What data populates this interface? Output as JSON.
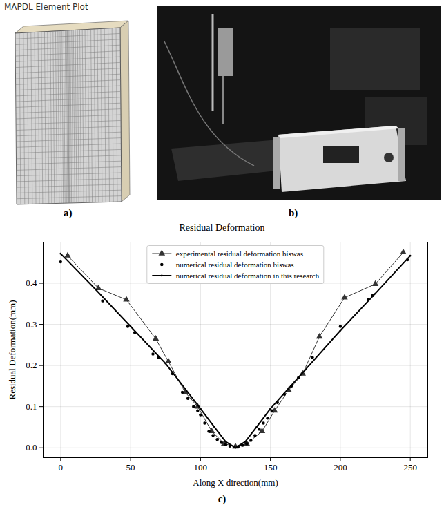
{
  "figures": [
    {
      "label": "a)",
      "title": "MAPDL Element Plot"
    },
    {
      "label": "b)"
    }
  ],
  "chart_data": {
    "type": "line",
    "title": "Residual Deformation",
    "panel_label": "c)",
    "x_label": "Along X direction(mm)",
    "y_label": "Residual Deformation(mm)",
    "xlim": [
      -12.5,
      262.5
    ],
    "xticks": [
      0,
      50,
      100,
      150,
      200,
      250
    ],
    "ylim": [
      -0.024,
      0.5
    ],
    "yticks": [
      {
        "value": 0,
        "label": "0.0"
      },
      {
        "value": 0.1,
        "label": "0.1"
      },
      {
        "value": 0.2,
        "label": "0.2"
      },
      {
        "value": 0.3,
        "label": "0.3"
      },
      {
        "value": 0.4,
        "label": "0.4"
      }
    ],
    "grid": true,
    "legend": "upper center",
    "series": [
      {
        "name": "experimental residual deformation biswas",
        "color": "#333333",
        "marker": "triangle",
        "line_style": "solid",
        "x": [
          5,
          27,
          47,
          68,
          77,
          89,
          98,
          108,
          117,
          125,
          133,
          144,
          153,
          163,
          173,
          185,
          203,
          225,
          245
        ],
        "values": [
          0.467,
          0.388,
          0.36,
          0.265,
          0.21,
          0.135,
          0.1,
          0.04,
          0.01,
          0.003,
          0.01,
          0.04,
          0.09,
          0.14,
          0.18,
          0.27,
          0.365,
          0.398,
          0.475
        ]
      },
      {
        "name": "numerical residual deformation biswas",
        "color": "#000000",
        "marker": "circle",
        "x": [
          0,
          30,
          48,
          53,
          66,
          70,
          80,
          87,
          91,
          95,
          98,
          100,
          103,
          106,
          109,
          112,
          115,
          118,
          121,
          124,
          127,
          130,
          133,
          136,
          139,
          142,
          145,
          148,
          151,
          155,
          160,
          165,
          170,
          180,
          200,
          220,
          223,
          248
        ],
        "values": [
          0.452,
          0.357,
          0.295,
          0.28,
          0.228,
          0.22,
          0.18,
          0.135,
          0.12,
          0.1,
          0.09,
          0.08,
          0.06,
          0.04,
          0.03,
          0.02,
          0.013,
          0.008,
          0.004,
          0.002,
          0.003,
          0.006,
          0.01,
          0.018,
          0.03,
          0.045,
          0.06,
          0.072,
          0.09,
          0.11,
          0.13,
          0.15,
          0.17,
          0.22,
          0.295,
          0.36,
          0.37,
          0.457
        ]
      },
      {
        "name": "numerical residual deformation in this research",
        "color": "#000000",
        "marker": "point",
        "line_style": "solid",
        "x": [
          0,
          25,
          50,
          75,
          100,
          110,
          118,
          125,
          132,
          140,
          150,
          175,
          200,
          225,
          250
        ],
        "values": [
          0.472,
          0.385,
          0.295,
          0.205,
          0.095,
          0.05,
          0.015,
          0.0,
          0.015,
          0.05,
          0.095,
          0.19,
          0.285,
          0.375,
          0.467
        ]
      }
    ]
  }
}
